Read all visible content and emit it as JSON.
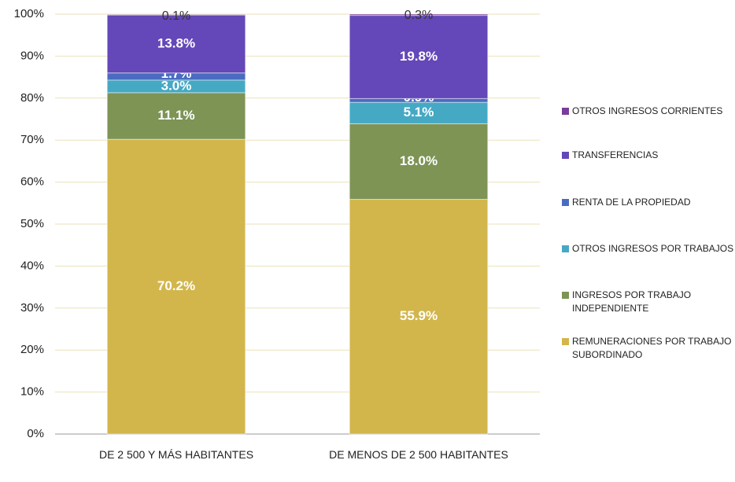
{
  "chart_data": {
    "type": "stacked_bar",
    "categories": [
      "DE 2 500 Y MÁS HABITANTES",
      "DE MENOS DE 2 500 HABITANTES"
    ],
    "series": [
      {
        "name": "REMUNERACIONES POR TRABAJO SUBORDINADO",
        "color": "#d2b64c",
        "values": [
          70.2,
          55.9
        ],
        "value_labels": [
          "70.2%",
          "55.9%"
        ]
      },
      {
        "name": "INGRESOS POR TRABAJO INDEPENDIENTE",
        "color": "#7d9455",
        "values": [
          11.1,
          18.0
        ],
        "value_labels": [
          "11.1%",
          "18.0%"
        ]
      },
      {
        "name": "OTROS INGRESOS POR TRABAJOS",
        "color": "#45a9c4",
        "values": [
          3.0,
          5.1
        ],
        "value_labels": [
          "3.0%",
          "5.1%"
        ]
      },
      {
        "name": "RENTA DE LA PROPIEDAD",
        "color": "#4a6cc0",
        "values": [
          1.7,
          0.9
        ],
        "value_labels": [
          "1.7%",
          "0.9%"
        ]
      },
      {
        "name": "TRANSFERENCIAS",
        "color": "#6447b8",
        "values": [
          13.8,
          19.8
        ],
        "value_labels": [
          "13.8%",
          "19.8%"
        ]
      },
      {
        "name": "OTROS INGRESOS CORRIENTES",
        "color": "#7a3c98",
        "values": [
          0.1,
          0.3
        ],
        "value_labels": [
          "0.1%",
          "0.3%"
        ]
      }
    ],
    "ylim": [
      0,
      100
    ],
    "yticks": [
      {
        "value": 0,
        "label": "0%"
      },
      {
        "value": 10,
        "label": "10%"
      },
      {
        "value": 20,
        "label": "20%"
      },
      {
        "value": 30,
        "label": "30%"
      },
      {
        "value": 40,
        "label": "40%"
      },
      {
        "value": 50,
        "label": "50%"
      },
      {
        "value": 60,
        "label": "60%"
      },
      {
        "value": 70,
        "label": "70%"
      },
      {
        "value": 80,
        "label": "80%"
      },
      {
        "value": 90,
        "label": "90%"
      },
      {
        "value": 100,
        "label": "100%"
      }
    ],
    "grid": true,
    "legend": "right"
  }
}
